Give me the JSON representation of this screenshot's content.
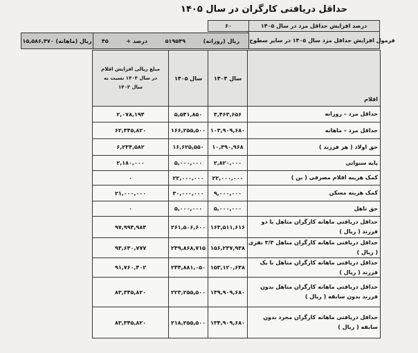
{
  "title": "حداقل دریافتی کارگران در سال ۱۴۰۵",
  "params": {
    "increase_label": "درصد افزایش حداقل مزد در سال ۱۴۰۵",
    "increase_value": "۶۰",
    "formula_label": "فرمول افزایش حداقل مزد سال ۱۴۰۵ در سایر سطوح مزدی",
    "formula_percent": "۴۵",
    "formula_percent_suffix": "درصد +",
    "daily_amount": "۵۱۹۵۴۹",
    "daily_unit": "ریال (روزانه)",
    "monthly_amount": "۱۵,۵۸۶,۴۷۰",
    "monthly_unit": "ریال (ماهانه)"
  },
  "table": {
    "headers": {
      "item": "اقلام",
      "y1404": "سال ۱۴۰۴",
      "y1405": "سال ۱۴۰۵",
      "increase": "مبلغ ریالی افزایش اقلام در سال ۱۴۰۴ نسبت به سال ۱۴۰۳"
    },
    "rows": [
      {
        "item": "حداقل مزد – روزانه",
        "y1404": "۳,۴۶۳,۶۵۶",
        "y1405": "۵,۵۴۱,۸۵۰",
        "increase": "۲,۰۷۸,۱۹۴"
      },
      {
        "item": "حداقل مزد – ماهانه",
        "y1404": "۱۰۳,۹۰۹,۶۸۰",
        "y1405": "۱۶۶,۲۵۵,۵۰۰",
        "increase": "۶۲,۳۴۵,۸۲۰"
      },
      {
        "item": "حق اولاد ( هر فرزند )",
        "y1404": "۱۰,۳۹۰,۹۶۸",
        "y1405": "۱۶,۶۲۵,۵۵۰",
        "increase": "۶,۲۳۴,۵۸۲"
      },
      {
        "item": "پایه سنواتی",
        "y1404": "۲,۸۲۰,۰۰۰",
        "y1405": "۵,۰۰۰,۰۰۰",
        "increase": "۲,۱۸۰,۰۰۰"
      },
      {
        "item": "کمک هزینه اقلام مصرفی ( بن )",
        "y1404": "۲۲,۰۰۰,۰۰۰",
        "y1405": "۲۲,۰۰۰,۰۰۰",
        "increase": "۰"
      },
      {
        "item": "کمک هزینه مسکن",
        "y1404": "۹,۰۰۰,۰۰۰",
        "y1405": "۳۰,۰۰۰,۰۰۰",
        "increase": "۲۱,۰۰۰,۰۰۰"
      },
      {
        "item": "حق تاهل",
        "y1404": "۵,۰۰۰,۰۰۰",
        "y1405": "۵,۰۰۰,۰۰۰",
        "increase": "۰"
      },
      {
        "item": "حداقل دریافتی ماهانه کارگران متاهل با دو فرزند ( ریال )",
        "y1404": "۱۶۳,۵۱۱,۶۱۶",
        "y1405": "۲۶۱,۵۰۶,۶۰۰",
        "increase": "۹۷,۹۹۴,۹۸۴"
      },
      {
        "item": "حداقل دریافتی ماهانه کارگران متاهل ۳/۳ نفری ( ریال )",
        "y1404": "۱۵۶,۲۳۷,۹۳۸",
        "y1405": "۲۴۹,۸۶۸,۷۱۵",
        "increase": "۹۳,۶۳۰,۷۷۷"
      },
      {
        "item": "حداقل دریافتی ماهانه کارگران متاهل با یک فرزند ( ریال )",
        "y1404": "۱۵۳,۱۲۰,۶۴۸",
        "y1405": "۲۴۴,۸۸۱,۰۵۰",
        "increase": "۹۱,۷۶۰,۴۰۲"
      },
      {
        "item": "حداقل دریافتی ماهانه کارگران متاهل بدون فرزند بدون سابقه ( ریال )",
        "y1404": "۱۳۹,۹۰۹,۶۸۰",
        "y1405": "۲۲۳,۲۵۵,۵۰۰",
        "increase": "۸۳,۳۴۵,۸۲۰"
      },
      {
        "item": "حداقل دریافتی ماهانه کارگران مجرد بدون سابقه ( ریال )",
        "y1404": "۱۳۴,۹۰۹,۶۸۰",
        "y1405": "۲۱۸,۲۵۵,۵۰۰",
        "increase": "۸۳,۳۴۵,۸۲۰"
      }
    ]
  }
}
